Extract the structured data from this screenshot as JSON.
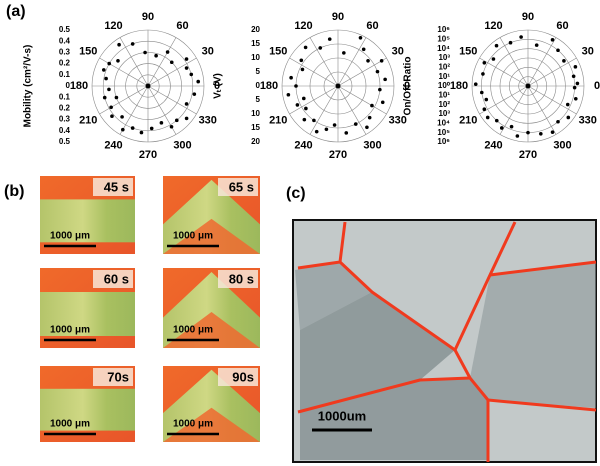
{
  "panel_labels": [
    "(a)",
    "(b)",
    "(c)"
  ],
  "chart_data": [
    {
      "type": "polar_scatter",
      "ylabel": "Mobility (cm²/V-s)",
      "rlim": [
        0,
        0.5
      ],
      "rticks": [
        0,
        0.1,
        0.2,
        0.3,
        0.4,
        0.5
      ],
      "thetaticks": [
        0,
        30,
        60,
        90,
        120,
        150,
        180,
        210,
        240,
        270,
        300,
        330
      ],
      "color": "#000000",
      "theta": [
        5,
        15,
        25,
        35,
        45,
        60,
        75,
        95,
        110,
        125,
        140,
        150,
        160,
        170,
        185,
        195,
        200,
        210,
        220,
        230,
        240,
        250,
        262,
        275,
        290,
        300,
        310,
        320,
        335,
        350
      ],
      "r": [
        0.45,
        0.4,
        0.38,
        0.42,
        0.3,
        0.35,
        0.28,
        0.3,
        0.4,
        0.45,
        0.35,
        0.4,
        0.42,
        0.38,
        0.35,
        0.4,
        0.3,
        0.38,
        0.42,
        0.36,
        0.45,
        0.4,
        0.42,
        0.38,
        0.35,
        0.42,
        0.4,
        0.45,
        0.38,
        0.42
      ]
    },
    {
      "type": "polar_scatter",
      "ylabel": "Vₜ (V)",
      "rlim": [
        0,
        20
      ],
      "rticks": [
        0,
        5,
        10,
        15,
        20
      ],
      "thetaticks": [
        0,
        30,
        60,
        90,
        120,
        150,
        180,
        210,
        240,
        270,
        300,
        330
      ],
      "color": "#000000",
      "theta": [
        8,
        20,
        30,
        40,
        55,
        65,
        80,
        100,
        115,
        130,
        145,
        155,
        170,
        180,
        190,
        200,
        205,
        215,
        225,
        235,
        245,
        255,
        265,
        280,
        295,
        305,
        315,
        330,
        340,
        355
      ],
      "r": [
        17,
        15,
        18,
        14,
        16,
        19,
        12,
        17,
        15,
        18,
        16,
        14,
        17,
        15,
        18,
        13,
        16,
        14,
        17,
        15,
        18,
        16,
        14,
        17,
        15,
        18,
        16,
        14,
        17,
        15
      ]
    },
    {
      "type": "polar_scatter",
      "ylabel": "On/Off Ratio",
      "log": true,
      "rlim": [
        1,
        1000000
      ],
      "rticks": [
        {
          "value": 1,
          "label": "10⁰"
        },
        {
          "value": 10,
          "label": "10¹"
        },
        {
          "value": 100,
          "label": "10²"
        },
        {
          "value": 1000,
          "label": "10³"
        },
        {
          "value": 10000,
          "label": "10⁴"
        },
        {
          "value": 100000,
          "label": "10⁵"
        },
        {
          "value": 1000000,
          "label": "10⁶"
        }
      ],
      "thetaticks": [
        0,
        30,
        60,
        90,
        120,
        150,
        180,
        210,
        240,
        270,
        300,
        330
      ],
      "color": "#000000",
      "theta": [
        3,
        12,
        22,
        35,
        50,
        62,
        78,
        98,
        112,
        128,
        142,
        152,
        165,
        178,
        188,
        198,
        208,
        218,
        228,
        238,
        248,
        258,
        270,
        285,
        298,
        310,
        322,
        335,
        345,
        358
      ],
      "r": [
        200000,
        100000,
        300000,
        50000,
        100000,
        400000,
        30000,
        200000,
        100000,
        300000,
        50000,
        200000,
        100000,
        400000,
        100000,
        50000,
        200000,
        300000,
        100000,
        200000,
        50000,
        300000,
        100000,
        200000,
        400000,
        100000,
        300000,
        50000,
        200000,
        100000
      ]
    }
  ],
  "micrographs": [
    {
      "time": "45 s",
      "scale": "1000 μm"
    },
    {
      "time": "60 s",
      "scale": "1000 μm"
    },
    {
      "time": "70s",
      "scale": "1000 μm"
    },
    {
      "time": "65 s",
      "scale": "1000 μm"
    },
    {
      "time": "80 s",
      "scale": "1000 μm"
    },
    {
      "time": "90s",
      "scale": "1000 μm"
    }
  ],
  "sem": {
    "scale": "1000um"
  }
}
